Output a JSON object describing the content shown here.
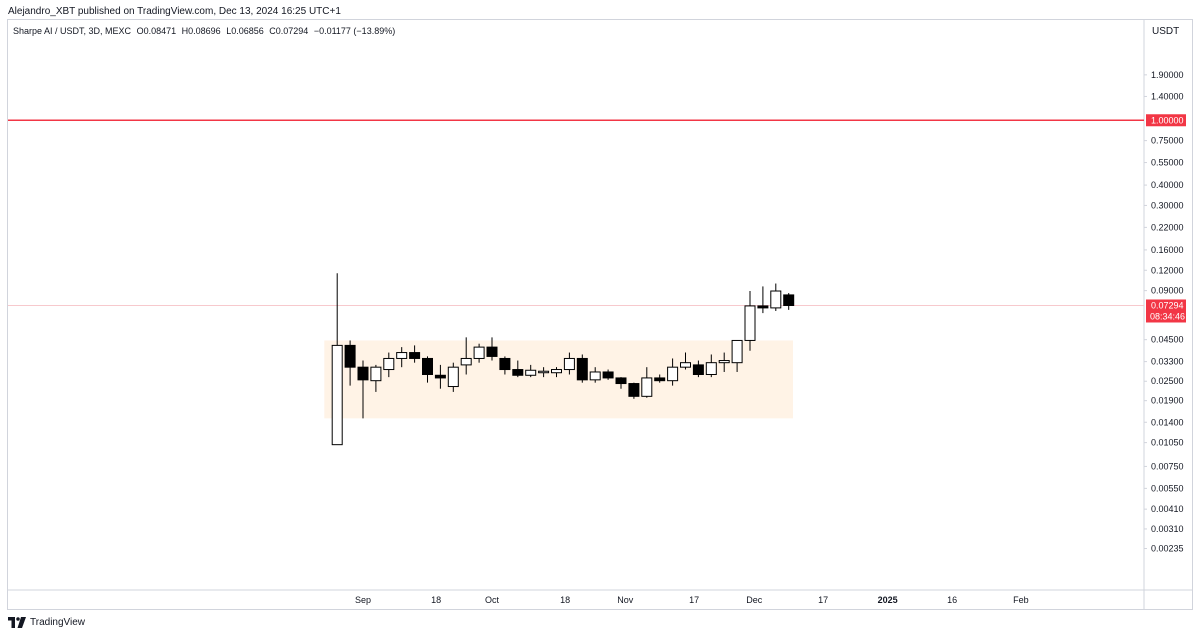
{
  "header": {
    "publisher_line": "Alejandro_XBT published on TradingView.com, Dec 13, 2024 16:25 UTC+1"
  },
  "legend": {
    "symbol": "Sharpe AI / USDT, 3D, MEXC",
    "open": "O0.08471",
    "high": "H0.08696",
    "low": "L0.06856",
    "close": "C0.07294",
    "change": "−0.01177 (−13.89%)"
  },
  "footer": {
    "brand": "TradingView"
  },
  "chart_data": {
    "type": "candlestick",
    "scale": "log",
    "currency_label": "USDT",
    "y_ticks": [
      {
        "value": 1.9,
        "label": "1.90000"
      },
      {
        "value": 1.4,
        "label": "1.40000"
      },
      {
        "value": 0.75,
        "label": "0.75000"
      },
      {
        "value": 0.55,
        "label": "0.55000"
      },
      {
        "value": 0.4,
        "label": "0.40000"
      },
      {
        "value": 0.3,
        "label": "0.30000"
      },
      {
        "value": 0.22,
        "label": "0.22000"
      },
      {
        "value": 0.16,
        "label": "0.16000"
      },
      {
        "value": 0.12,
        "label": "0.12000"
      },
      {
        "value": 0.09,
        "label": "0.09000"
      },
      {
        "value": 0.045,
        "label": "0.04500"
      },
      {
        "value": 0.033,
        "label": "0.03300"
      },
      {
        "value": 0.025,
        "label": "0.02500"
      },
      {
        "value": 0.019,
        "label": "0.01900"
      },
      {
        "value": 0.014,
        "label": "0.01400"
      },
      {
        "value": 0.0105,
        "label": "0.01050"
      },
      {
        "value": 0.0075,
        "label": "0.00750"
      },
      {
        "value": 0.0055,
        "label": "0.00550"
      },
      {
        "value": 0.0041,
        "label": "0.00410"
      },
      {
        "value": 0.0031,
        "label": "0.00310"
      },
      {
        "value": 0.00235,
        "label": "0.00235"
      }
    ],
    "x_ticks": [
      {
        "date": "2024-09-01",
        "label": "Sep",
        "bold": false
      },
      {
        "date": "2024-09-18",
        "label": "18",
        "bold": false
      },
      {
        "date": "2024-10-01",
        "label": "Oct",
        "bold": false
      },
      {
        "date": "2024-10-18",
        "label": "18",
        "bold": false
      },
      {
        "date": "2024-11-01",
        "label": "Nov",
        "bold": false
      },
      {
        "date": "2024-11-17",
        "label": "17",
        "bold": false
      },
      {
        "date": "2024-12-01",
        "label": "Dec",
        "bold": false
      },
      {
        "date": "2024-12-17",
        "label": "17",
        "bold": false
      },
      {
        "date": "2025-01-01",
        "label": "2025",
        "bold": true
      },
      {
        "date": "2025-01-16",
        "label": "16",
        "bold": false
      },
      {
        "date": "2025-02-01",
        "label": "Feb",
        "bold": false
      }
    ],
    "candles": [
      {
        "date": "2024-08-26",
        "o": 0.0102,
        "h": 0.115,
        "l": 0.0102,
        "c": 0.0415
      },
      {
        "date": "2024-08-29",
        "o": 0.0415,
        "h": 0.0445,
        "l": 0.0235,
        "c": 0.0305
      },
      {
        "date": "2024-09-01",
        "o": 0.0305,
        "h": 0.0335,
        "l": 0.0148,
        "c": 0.0255
      },
      {
        "date": "2024-09-04",
        "o": 0.0252,
        "h": 0.0315,
        "l": 0.0215,
        "c": 0.0305
      },
      {
        "date": "2024-09-07",
        "o": 0.0295,
        "h": 0.0375,
        "l": 0.0265,
        "c": 0.0345
      },
      {
        "date": "2024-09-10",
        "o": 0.0345,
        "h": 0.0405,
        "l": 0.0305,
        "c": 0.0375
      },
      {
        "date": "2024-09-13",
        "o": 0.0375,
        "h": 0.0415,
        "l": 0.0325,
        "c": 0.0345
      },
      {
        "date": "2024-09-16",
        "o": 0.0345,
        "h": 0.0355,
        "l": 0.0245,
        "c": 0.0275
      },
      {
        "date": "2024-09-19",
        "o": 0.0272,
        "h": 0.0315,
        "l": 0.0225,
        "c": 0.0262
      },
      {
        "date": "2024-09-22",
        "o": 0.0232,
        "h": 0.0325,
        "l": 0.0215,
        "c": 0.0305
      },
      {
        "date": "2024-09-25",
        "o": 0.0315,
        "h": 0.0465,
        "l": 0.0275,
        "c": 0.0345
      },
      {
        "date": "2024-09-28",
        "o": 0.0345,
        "h": 0.0425,
        "l": 0.0325,
        "c": 0.0405
      },
      {
        "date": "2024-10-01",
        "o": 0.0405,
        "h": 0.0465,
        "l": 0.0335,
        "c": 0.0355
      },
      {
        "date": "2024-10-04",
        "o": 0.0345,
        "h": 0.0355,
        "l": 0.0275,
        "c": 0.0295
      },
      {
        "date": "2024-10-07",
        "o": 0.0295,
        "h": 0.0335,
        "l": 0.0265,
        "c": 0.0272
      },
      {
        "date": "2024-10-10",
        "o": 0.0272,
        "h": 0.0315,
        "l": 0.0265,
        "c": 0.0292
      },
      {
        "date": "2024-10-13",
        "o": 0.0282,
        "h": 0.0305,
        "l": 0.0265,
        "c": 0.0288
      },
      {
        "date": "2024-10-16",
        "o": 0.0282,
        "h": 0.0305,
        "l": 0.0265,
        "c": 0.0295
      },
      {
        "date": "2024-10-19",
        "o": 0.0295,
        "h": 0.0375,
        "l": 0.0275,
        "c": 0.0345
      },
      {
        "date": "2024-10-22",
        "o": 0.0345,
        "h": 0.0365,
        "l": 0.0245,
        "c": 0.0255
      },
      {
        "date": "2024-10-25",
        "o": 0.0255,
        "h": 0.0305,
        "l": 0.0245,
        "c": 0.0285
      },
      {
        "date": "2024-10-28",
        "o": 0.0285,
        "h": 0.0295,
        "l": 0.0255,
        "c": 0.0262
      },
      {
        "date": "2024-10-31",
        "o": 0.0262,
        "h": 0.0265,
        "l": 0.0225,
        "c": 0.0242
      },
      {
        "date": "2024-11-03",
        "o": 0.0242,
        "h": 0.0245,
        "l": 0.0195,
        "c": 0.0202
      },
      {
        "date": "2024-11-06",
        "o": 0.0202,
        "h": 0.0305,
        "l": 0.0198,
        "c": 0.0262
      },
      {
        "date": "2024-11-09",
        "o": 0.0262,
        "h": 0.0275,
        "l": 0.0245,
        "c": 0.0252
      },
      {
        "date": "2024-11-12",
        "o": 0.0252,
        "h": 0.0345,
        "l": 0.0235,
        "c": 0.0305
      },
      {
        "date": "2024-11-15",
        "o": 0.0305,
        "h": 0.0375,
        "l": 0.0295,
        "c": 0.0325
      },
      {
        "date": "2024-11-18",
        "o": 0.0315,
        "h": 0.0335,
        "l": 0.0265,
        "c": 0.0275
      },
      {
        "date": "2024-11-21",
        "o": 0.0275,
        "h": 0.0365,
        "l": 0.0265,
        "c": 0.0325
      },
      {
        "date": "2024-11-24",
        "o": 0.0325,
        "h": 0.0375,
        "l": 0.0285,
        "c": 0.0335
      },
      {
        "date": "2024-11-27",
        "o": 0.0325,
        "h": 0.0445,
        "l": 0.0285,
        "c": 0.0445
      },
      {
        "date": "2024-11-30",
        "o": 0.0445,
        "h": 0.0895,
        "l": 0.0385,
        "c": 0.0725
      },
      {
        "date": "2024-12-03",
        "o": 0.0725,
        "h": 0.0955,
        "l": 0.0655,
        "c": 0.0705
      },
      {
        "date": "2024-12-06",
        "o": 0.0705,
        "h": 0.0995,
        "l": 0.0675,
        "c": 0.0895
      },
      {
        "date": "2024-12-09",
        "o": 0.08471,
        "h": 0.08696,
        "l": 0.06856,
        "c": 0.07294
      }
    ],
    "box": {
      "x_start": "2024-08-23",
      "x_end": "2024-12-10",
      "y_low": 0.0148,
      "y_high": 0.0445
    },
    "hlines": [
      {
        "value": 1.0,
        "label": "1.00000"
      }
    ],
    "last_price": {
      "value": 0.07294,
      "label": "0.07294",
      "countdown": "08:34:46"
    }
  },
  "colors": {
    "up_body": "#ffffff",
    "down_body": "#000000",
    "candle_border": "#000000",
    "wick": "#000000",
    "box_fill": "#fff3e6",
    "hline": "#f23645",
    "last_price": "#f23645",
    "price_line": "#f7c9cd",
    "axis_text": "#131722",
    "frame": "#d1d4dc"
  }
}
